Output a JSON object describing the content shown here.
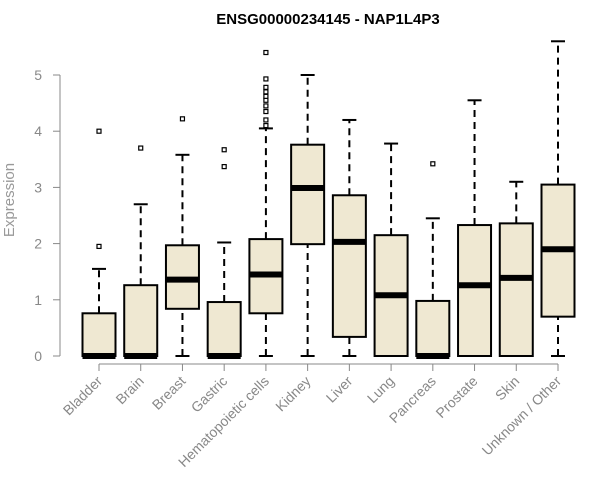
{
  "chart_data": {
    "type": "boxplot",
    "title": "ENSG00000234145 - NAP1L4P3",
    "ylabel": "Expression",
    "xlabel": "",
    "ylim": [
      0,
      5.6
    ],
    "yticks": [
      0,
      1,
      2,
      3,
      4,
      5
    ],
    "grid": false,
    "colors": {
      "box_fill": "#efe8d2",
      "stroke": "#000000",
      "axis": "#888888"
    },
    "categories": [
      "Bladder",
      "Brain",
      "Breast",
      "Gastric",
      "Hematopoietic cells",
      "Kidney",
      "Liver",
      "Lung",
      "Pancreas",
      "Prostate",
      "Skin",
      "Unknown / Other"
    ],
    "boxes": [
      {
        "category": "Bladder",
        "whisker_low": 0,
        "q1": 0,
        "median": 0,
        "q3": 0.76,
        "whisker_high": 1.55,
        "outliers": [
          1.95,
          4.0
        ]
      },
      {
        "category": "Brain",
        "whisker_low": 0,
        "q1": 0,
        "median": 0,
        "q3": 1.26,
        "whisker_high": 2.7,
        "outliers": [
          3.7
        ]
      },
      {
        "category": "Breast",
        "whisker_low": 0,
        "q1": 0.84,
        "median": 1.36,
        "q3": 1.97,
        "whisker_high": 3.58,
        "outliers": [
          4.22
        ]
      },
      {
        "category": "Gastric",
        "whisker_low": 0,
        "q1": 0,
        "median": 0,
        "q3": 0.96,
        "whisker_high": 2.02,
        "outliers": [
          3.37,
          3.67
        ]
      },
      {
        "category": "Hematopoietic cells",
        "whisker_low": 0,
        "q1": 0.76,
        "median": 1.45,
        "q3": 2.08,
        "whisker_high": 4.05,
        "outliers": [
          4.1,
          4.2,
          4.35,
          4.45,
          4.55,
          4.62,
          4.7,
          4.78,
          4.93,
          5.4
        ]
      },
      {
        "category": "Kidney",
        "whisker_low": 0,
        "q1": 1.99,
        "median": 2.99,
        "q3": 3.76,
        "whisker_high": 5.0,
        "outliers": []
      },
      {
        "category": "Liver",
        "whisker_low": 0,
        "q1": 0.34,
        "median": 2.03,
        "q3": 2.86,
        "whisker_high": 4.2,
        "outliers": []
      },
      {
        "category": "Lung",
        "whisker_low": 0,
        "q1": 0,
        "median": 1.08,
        "q3": 2.15,
        "whisker_high": 3.78,
        "outliers": []
      },
      {
        "category": "Pancreas",
        "whisker_low": 0,
        "q1": 0,
        "median": 0,
        "q3": 0.98,
        "whisker_high": 2.45,
        "outliers": [
          3.42
        ]
      },
      {
        "category": "Prostate",
        "whisker_low": 0,
        "q1": 0,
        "median": 1.26,
        "q3": 2.33,
        "whisker_high": 4.55,
        "outliers": []
      },
      {
        "category": "Skin",
        "whisker_low": 0,
        "q1": 0,
        "median": 1.39,
        "q3": 2.36,
        "whisker_high": 3.1,
        "outliers": []
      },
      {
        "category": "Unknown / Other",
        "whisker_low": 0,
        "q1": 0.7,
        "median": 1.9,
        "q3": 3.05,
        "whisker_high": 5.6,
        "outliers": []
      }
    ]
  }
}
